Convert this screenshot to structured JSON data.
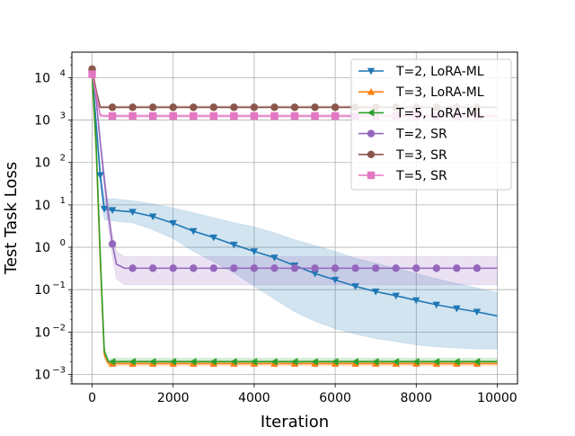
{
  "chart_data": {
    "type": "line",
    "title": "",
    "xlabel": "Iteration",
    "ylabel": "Test Task Loss",
    "yscale": "log",
    "xlim": [
      -500,
      10500
    ],
    "ylim": [
      0.0006,
      40000
    ],
    "grid": true,
    "legend_position": "top-right",
    "x_ticks": [
      0,
      2000,
      4000,
      6000,
      8000,
      10000
    ],
    "x_tick_labels": [
      "0",
      "2000",
      "4000",
      "6000",
      "8000",
      "10000"
    ],
    "y_ticks": [
      0.001,
      0.01,
      0.1,
      1,
      10,
      100,
      1000,
      10000
    ],
    "y_tick_labels": [
      {
        "base": "10",
        "exp": "−3"
      },
      {
        "base": "10",
        "exp": "−2"
      },
      {
        "base": "10",
        "exp": "−1"
      },
      {
        "base": "10",
        "exp": "0"
      },
      {
        "base": "10",
        "exp": "1"
      },
      {
        "base": "10",
        "exp": "2"
      },
      {
        "base": "10",
        "exp": "3"
      },
      {
        "base": "10",
        "exp": "4"
      }
    ],
    "series": [
      {
        "name": "T=2, LoRA-ML",
        "color": "#1f77b4",
        "marker": "triangle-down",
        "x": [
          0,
          100,
          200,
          300,
          500,
          1000,
          1500,
          2000,
          2500,
          3000,
          3500,
          4000,
          4500,
          5000,
          5500,
          6000,
          6500,
          7000,
          7500,
          8000,
          8500,
          9000,
          9500,
          10000
        ],
        "y": [
          14000,
          800,
          50,
          8,
          7.5,
          6.8,
          5.3,
          3.7,
          2.4,
          1.7,
          1.15,
          0.8,
          0.57,
          0.37,
          0.24,
          0.17,
          0.12,
          0.09,
          0.072,
          0.056,
          0.044,
          0.036,
          0.03,
          0.024
        ],
        "band_low": [
          12000,
          600,
          30,
          4.5,
          4.2,
          3.8,
          2.6,
          1.6,
          0.8,
          0.45,
          0.25,
          0.12,
          0.06,
          0.03,
          0.018,
          0.012,
          0.009,
          0.007,
          0.006,
          0.005,
          0.0045,
          0.0042,
          0.004,
          0.004
        ],
        "band_high": [
          16000,
          1000,
          80,
          14,
          14,
          12.5,
          10.5,
          8.5,
          6.5,
          5,
          3.8,
          3,
          2.2,
          1.5,
          1.1,
          0.8,
          0.55,
          0.42,
          0.32,
          0.24,
          0.18,
          0.14,
          0.11,
          0.085
        ],
        "marker_every": [
          2,
          3,
          4,
          5,
          6,
          7,
          8,
          9,
          10,
          11,
          12,
          13,
          14,
          15,
          16,
          17,
          18,
          19,
          20,
          21,
          22
        ]
      },
      {
        "name": "T=3, LoRA-ML",
        "color": "#ff7f0e",
        "marker": "triangle-up",
        "x": [
          0,
          100,
          200,
          300,
          400,
          500,
          1000,
          2000,
          4000,
          6000,
          8000,
          10000
        ],
        "y": [
          12000,
          200,
          0.5,
          0.003,
          0.0018,
          0.0018,
          0.0018,
          0.0018,
          0.0018,
          0.0018,
          0.0018,
          0.0018
        ],
        "band_low": [
          10000,
          150,
          0.35,
          0.0023,
          0.0016,
          0.0016,
          0.0016,
          0.0016,
          0.0016,
          0.0016,
          0.0016,
          0.0016
        ],
        "band_high": [
          14000,
          280,
          0.7,
          0.0038,
          0.0021,
          0.0021,
          0.0021,
          0.0021,
          0.0021,
          0.0021,
          0.0021,
          0.0021
        ],
        "marker_x": [
          500,
          1000,
          1500,
          2000,
          2500,
          3000,
          3500,
          4000,
          4500,
          5000,
          5500,
          6000,
          6500,
          7000,
          7500,
          8000,
          8500,
          9000,
          9500
        ]
      },
      {
        "name": "T=5, LoRA-ML",
        "color": "#2ca02c",
        "marker": "triangle-left",
        "x": [
          0,
          100,
          200,
          300,
          400,
          500,
          1000,
          2000,
          4000,
          6000,
          8000,
          10000
        ],
        "y": [
          12000,
          250,
          0.7,
          0.0035,
          0.002,
          0.002,
          0.002,
          0.002,
          0.002,
          0.002,
          0.002,
          0.002
        ],
        "band_low": [
          10000,
          180,
          0.45,
          0.0026,
          0.0018,
          0.0018,
          0.0018,
          0.0018,
          0.0018,
          0.0018,
          0.0018,
          0.0018
        ],
        "band_high": [
          14000,
          340,
          1,
          0.0045,
          0.0024,
          0.0024,
          0.0024,
          0.0024,
          0.0024,
          0.0024,
          0.0024,
          0.0024
        ],
        "marker_x": [
          500,
          1000,
          1500,
          2000,
          2500,
          3000,
          3500,
          4000,
          4500,
          5000,
          5500,
          6000,
          6500,
          7000,
          7500,
          8000,
          8500,
          9000,
          9500
        ]
      },
      {
        "name": "T=2, SR",
        "color": "#9467bd",
        "marker": "circle",
        "x": [
          0,
          100,
          200,
          300,
          400,
          500,
          600,
          800,
          1000,
          2000,
          4000,
          6000,
          8000,
          10000
        ],
        "y": [
          15000,
          3000,
          300,
          40,
          6,
          1.2,
          0.4,
          0.32,
          0.32,
          0.32,
          0.32,
          0.32,
          0.32,
          0.32
        ],
        "band_low": [
          13000,
          2500,
          220,
          25,
          3,
          0.6,
          0.18,
          0.13,
          0.13,
          0.13,
          0.13,
          0.13,
          0.13,
          0.13
        ],
        "band_high": [
          17000,
          3600,
          420,
          60,
          10,
          2.2,
          0.8,
          0.6,
          0.6,
          0.6,
          0.6,
          0.6,
          0.6,
          0.6
        ],
        "marker_x": [
          0,
          500,
          1000,
          1500,
          2000,
          2500,
          3000,
          3500,
          4000,
          4500,
          5000,
          5500,
          6000,
          6500,
          7000,
          7500,
          8000,
          8500,
          9000,
          9500
        ]
      },
      {
        "name": "T=3, SR",
        "color": "#8c564b",
        "marker": "circle",
        "x": [
          0,
          100,
          200,
          300,
          500,
          1000,
          2000,
          4000,
          6000,
          8000,
          10000
        ],
        "y": [
          16000,
          5000,
          2000,
          2000,
          2000,
          2000,
          2000,
          2000,
          2000,
          2000,
          2000
        ],
        "band_low": [
          15000,
          4500,
          1900,
          1900,
          1900,
          1900,
          1900,
          1900,
          1900,
          1900,
          1900
        ],
        "band_high": [
          17000,
          5500,
          2150,
          2150,
          2150,
          2150,
          2150,
          2150,
          2150,
          2150,
          2150
        ],
        "marker_x": [
          0,
          500,
          1000,
          1500,
          2000,
          2500,
          3000,
          3500,
          4000,
          4500,
          5000,
          5500,
          6000,
          6500,
          7000,
          7500,
          8000,
          8500,
          9000,
          9500
        ]
      },
      {
        "name": "T=5, SR",
        "color": "#e377c2",
        "marker": "square",
        "x": [
          0,
          100,
          200,
          300,
          500,
          1000,
          2000,
          4000,
          6000,
          8000,
          10000
        ],
        "y": [
          12000,
          4000,
          1300,
          1250,
          1250,
          1250,
          1250,
          1250,
          1250,
          1250,
          1250
        ],
        "band_low": [
          11000,
          3600,
          1150,
          1150,
          1150,
          1150,
          1150,
          1150,
          1150,
          1150,
          1150
        ],
        "band_high": [
          13000,
          4400,
          1400,
          1380,
          1380,
          1380,
          1380,
          1380,
          1380,
          1380,
          1380
        ],
        "marker_x": [
          0,
          500,
          1000,
          1500,
          2000,
          2500,
          3000,
          3500,
          4000,
          4500,
          5000,
          5500,
          6000,
          6500,
          7000,
          7500,
          8000,
          8500,
          9000,
          9500
        ]
      }
    ]
  }
}
